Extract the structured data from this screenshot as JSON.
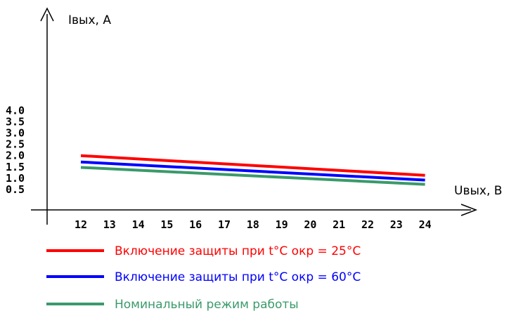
{
  "chart_data": {
    "type": "line",
    "xlabel": "Uвых, В",
    "ylabel": "Iвых, А",
    "x_ticks": [
      "12",
      "13",
      "14",
      "15",
      "16",
      "17",
      "18",
      "19",
      "20",
      "21",
      "22",
      "23",
      "24"
    ],
    "y_ticks": [
      "0.5",
      "1.0",
      "1.5",
      "2.0",
      "2.5",
      "3.0",
      "3.5",
      "4.0"
    ],
    "xlim": [
      11,
      25.5
    ],
    "ylim": [
      0,
      4.5
    ],
    "legend_position": "bottom",
    "series": [
      {
        "name": "Включение защиты при t°C окр = 25°C",
        "color": "#ff0000",
        "x": [
          12,
          24
        ],
        "y": [
          2.0,
          1.13
        ]
      },
      {
        "name": "Включение защиты при t°C окр = 60°C",
        "color": "#0000ff",
        "x": [
          12,
          24
        ],
        "y": [
          1.72,
          0.92
        ]
      },
      {
        "name": "Номинальный режим работы",
        "color": "#3a9a6a",
        "x": [
          12,
          24
        ],
        "y": [
          1.48,
          0.73
        ]
      }
    ]
  }
}
